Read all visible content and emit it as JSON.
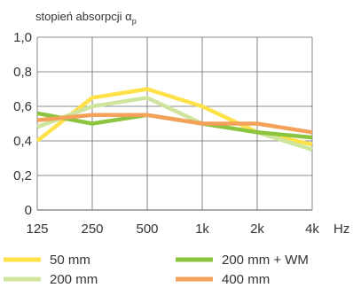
{
  "chart_data": {
    "type": "line",
    "title": "stopień absorpcji α",
    "title_subscript": "p",
    "categories": [
      "125",
      "250",
      "500",
      "1k",
      "2k",
      "4k"
    ],
    "x_unit": "Hz",
    "ylim": [
      0,
      1.0
    ],
    "yticks": [
      "0",
      "0,2",
      "0,4",
      "0,6",
      "0,8",
      "1,0"
    ],
    "grid": true,
    "legend_position": "bottom",
    "series": [
      {
        "name": "50 mm",
        "color": "#ffe14a",
        "values": [
          0.4,
          0.65,
          0.7,
          0.6,
          0.45,
          0.38
        ]
      },
      {
        "name": "200 mm",
        "color": "#cfe59e",
        "values": [
          0.48,
          0.6,
          0.65,
          0.5,
          0.45,
          0.35
        ]
      },
      {
        "name": "200 mm + WM",
        "color": "#8bc53f",
        "values": [
          0.56,
          0.5,
          0.55,
          0.5,
          0.45,
          0.42
        ]
      },
      {
        "name": "400 mm",
        "color": "#f4a259",
        "values": [
          0.52,
          0.55,
          0.55,
          0.5,
          0.5,
          0.45
        ]
      }
    ]
  }
}
